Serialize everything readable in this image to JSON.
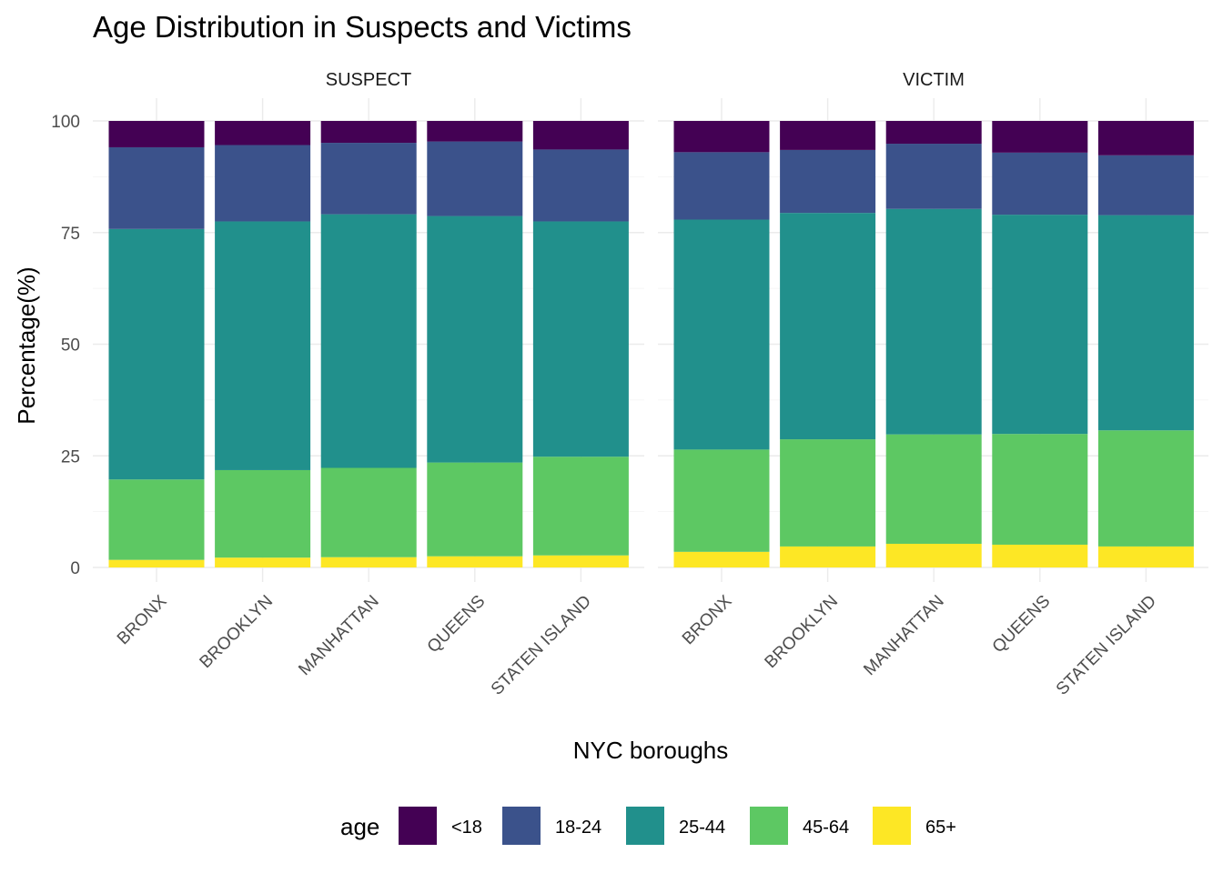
{
  "chart_data": {
    "type": "bar",
    "stacked": true,
    "title": "Age Distribution in Suspects and Victims",
    "xlabel": "NYC boroughs",
    "ylabel": "Percentage(%)",
    "ylim": [
      0,
      100
    ],
    "yticks": [
      "0",
      "25",
      "50",
      "75",
      "100"
    ],
    "grid": true,
    "legend_position": "bottom",
    "legend_title": "age",
    "categories": [
      "BRONX",
      "BROOKLYN",
      "MANHATTAN",
      "QUEENS",
      "STATEN ISLAND"
    ],
    "age_groups": [
      "<18",
      "18-24",
      "25-44",
      "45-64",
      "65+"
    ],
    "colors": {
      "<18": "#440154",
      "18-24": "#3b528b",
      "25-44": "#21908c",
      "45-64": "#5dc863",
      "65+": "#fde725"
    },
    "panels": [
      {
        "label": "SUSPECT",
        "series": [
          {
            "name": "65+",
            "values": [
              1.7,
              2.2,
              2.3,
              2.5,
              2.7
            ]
          },
          {
            "name": "45-64",
            "values": [
              18.0,
              19.6,
              20.0,
              21.0,
              22.1
            ]
          },
          {
            "name": "25-44",
            "values": [
              56.1,
              55.7,
              56.8,
              55.2,
              52.7
            ]
          },
          {
            "name": "18-24",
            "values": [
              18.3,
              17.1,
              16.0,
              16.7,
              16.1
            ]
          },
          {
            "name": "<18",
            "values": [
              5.9,
              5.4,
              4.9,
              4.6,
              6.4
            ]
          }
        ]
      },
      {
        "label": "VICTIM",
        "series": [
          {
            "name": "65+",
            "values": [
              3.5,
              4.7,
              5.3,
              5.1,
              4.7
            ]
          },
          {
            "name": "45-64",
            "values": [
              22.9,
              24.0,
              24.5,
              24.8,
              26.0
            ]
          },
          {
            "name": "25-44",
            "values": [
              51.5,
              50.7,
              50.5,
              49.1,
              48.2
            ]
          },
          {
            "name": "18-24",
            "values": [
              15.1,
              14.1,
              14.6,
              13.9,
              13.4
            ]
          },
          {
            "name": "<18",
            "values": [
              7.0,
              6.5,
              5.1,
              7.1,
              7.7
            ]
          }
        ]
      }
    ]
  }
}
